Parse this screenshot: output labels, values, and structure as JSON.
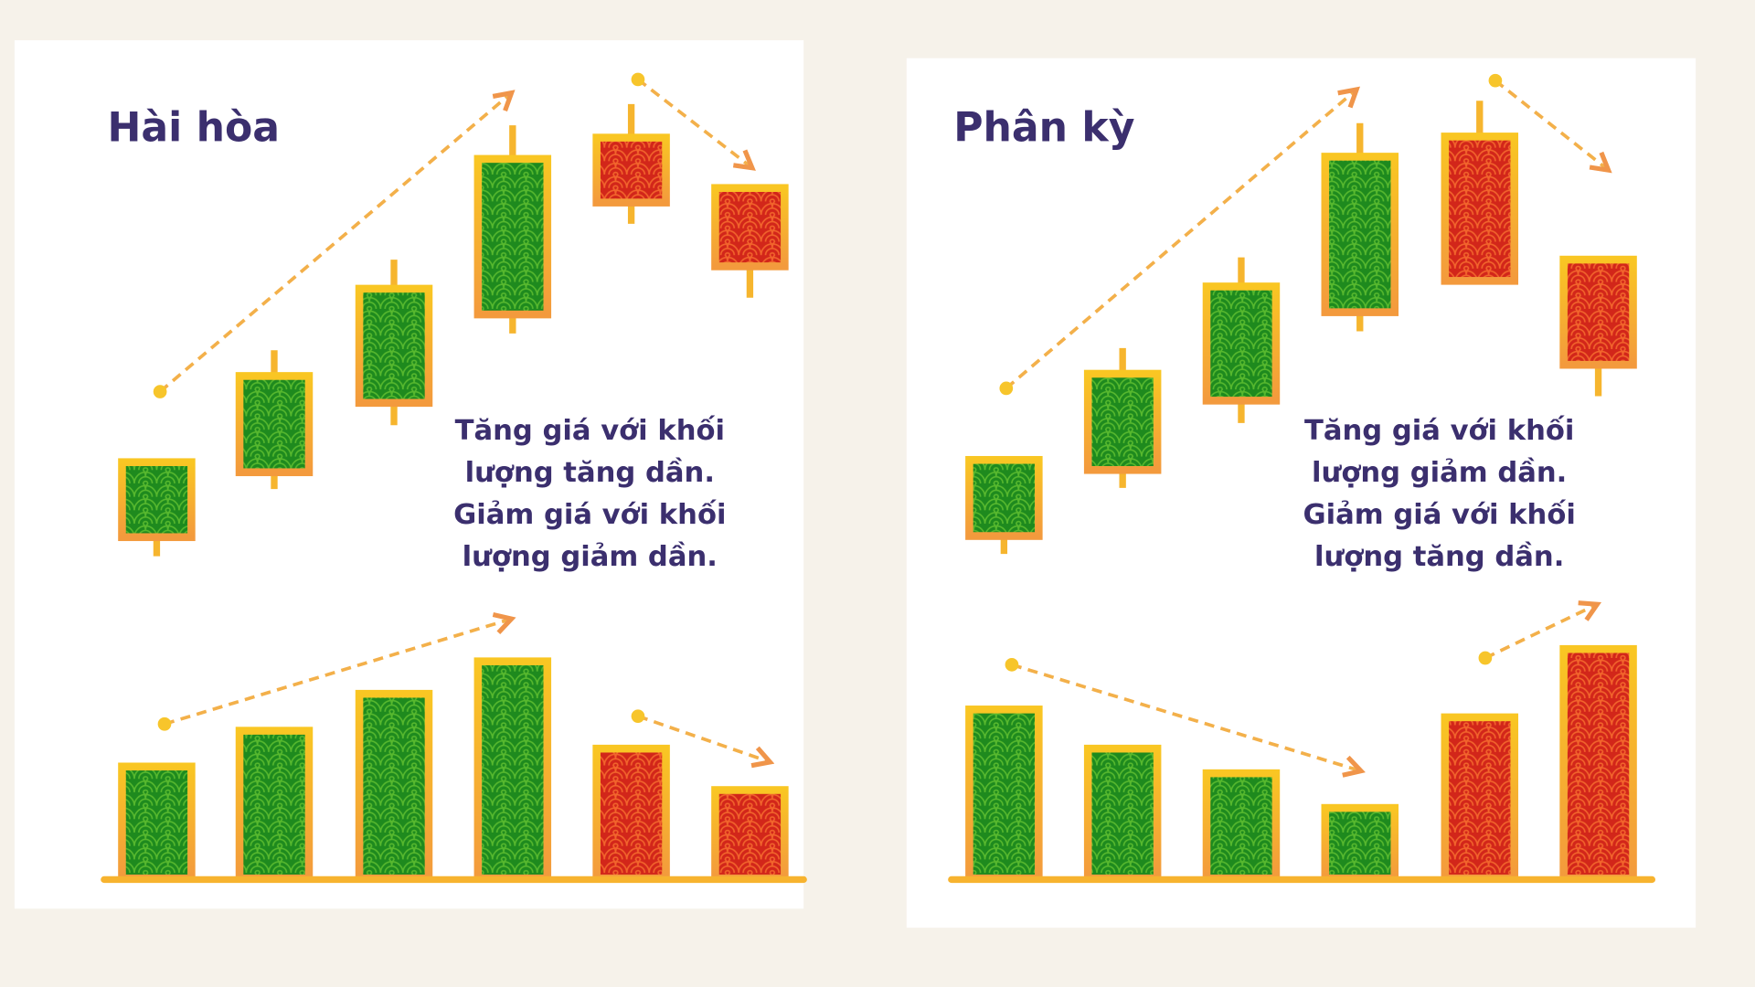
{
  "panels": [
    {
      "title": "Hài hòa",
      "text": [
        "Tăng giá với khối",
        "lượng tăng dần.",
        "Giảm giá với khối",
        "lượng giảm dần."
      ]
    },
    {
      "title": "Phân kỳ",
      "text": [
        "Tăng giá với khối",
        "lượng giảm dần.",
        "Giảm giá với khối",
        "lượng tăng dần."
      ]
    }
  ]
}
